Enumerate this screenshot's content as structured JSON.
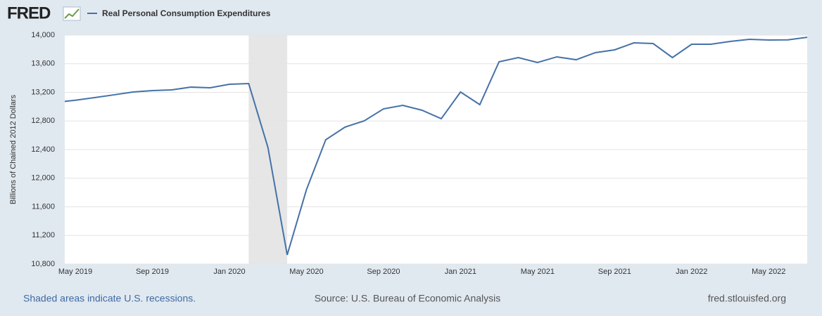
{
  "chart_data": {
    "type": "line",
    "logo": "FRED",
    "y_label": "Billions of Chained 2012 Dollars",
    "footer_note": "Shaded areas indicate U.S. recessions.",
    "source": "Source: U.S. Bureau of Economic Analysis",
    "site": "fred.stlouisfed.org",
    "x": [
      "Apr 2019",
      "May 2019",
      "Jun 2019",
      "Jul 2019",
      "Aug 2019",
      "Sep 2019",
      "Oct 2019",
      "Nov 2019",
      "Dec 2019",
      "Jan 2020",
      "Feb 2020",
      "Mar 2020",
      "Apr 2020",
      "May 2020",
      "Jun 2020",
      "Jul 2020",
      "Aug 2020",
      "Sep 2020",
      "Oct 2020",
      "Nov 2020",
      "Dec 2020",
      "Jan 2021",
      "Feb 2021",
      "Mar 2021",
      "Apr 2021",
      "May 2021",
      "Jun 2021",
      "Jul 2021",
      "Aug 2021",
      "Sep 2021",
      "Oct 2021",
      "Nov 2021",
      "Dec 2021",
      "Jan 2022",
      "Feb 2022",
      "Mar 2022",
      "Apr 2022",
      "May 2022",
      "Jun 2022",
      "Jul 2022"
    ],
    "series": [
      {
        "name": "Real Personal Consumption Expenditures",
        "color": "#4572a7",
        "values": [
          13060,
          13090,
          13126,
          13165,
          13205,
          13225,
          13234,
          13273,
          13264,
          13313,
          13323,
          12430,
          10928,
          11840,
          12537,
          12714,
          12802,
          12969,
          13018,
          12950,
          12832,
          13205,
          13028,
          13627,
          13686,
          13617,
          13696,
          13656,
          13755,
          13794,
          13892,
          13882,
          13686,
          13872,
          13872,
          13912,
          13941,
          13931,
          13934,
          13970
        ]
      }
    ],
    "xticks": [
      "May 2019",
      "Sep 2019",
      "Jan 2020",
      "May 2020",
      "Sep 2020",
      "Jan 2021",
      "May 2021",
      "Sep 2021",
      "Jan 2022",
      "May 2022"
    ],
    "recessions": [
      {
        "start": "Feb 2020",
        "end": "Apr 2020"
      }
    ],
    "ylim": [
      10800,
      14000
    ],
    "yticks": [
      {
        "value": 10800,
        "label": "10,800"
      },
      {
        "value": 11200,
        "label": "11,200"
      },
      {
        "value": 11600,
        "label": "11,600"
      },
      {
        "value": 12000,
        "label": "12,000"
      },
      {
        "value": 12400,
        "label": "12,400"
      },
      {
        "value": 12800,
        "label": "12,800"
      },
      {
        "value": 13200,
        "label": "13,200"
      },
      {
        "value": 13600,
        "label": "13,600"
      },
      {
        "value": 14000,
        "label": "14,000"
      }
    ],
    "grid": true
  }
}
